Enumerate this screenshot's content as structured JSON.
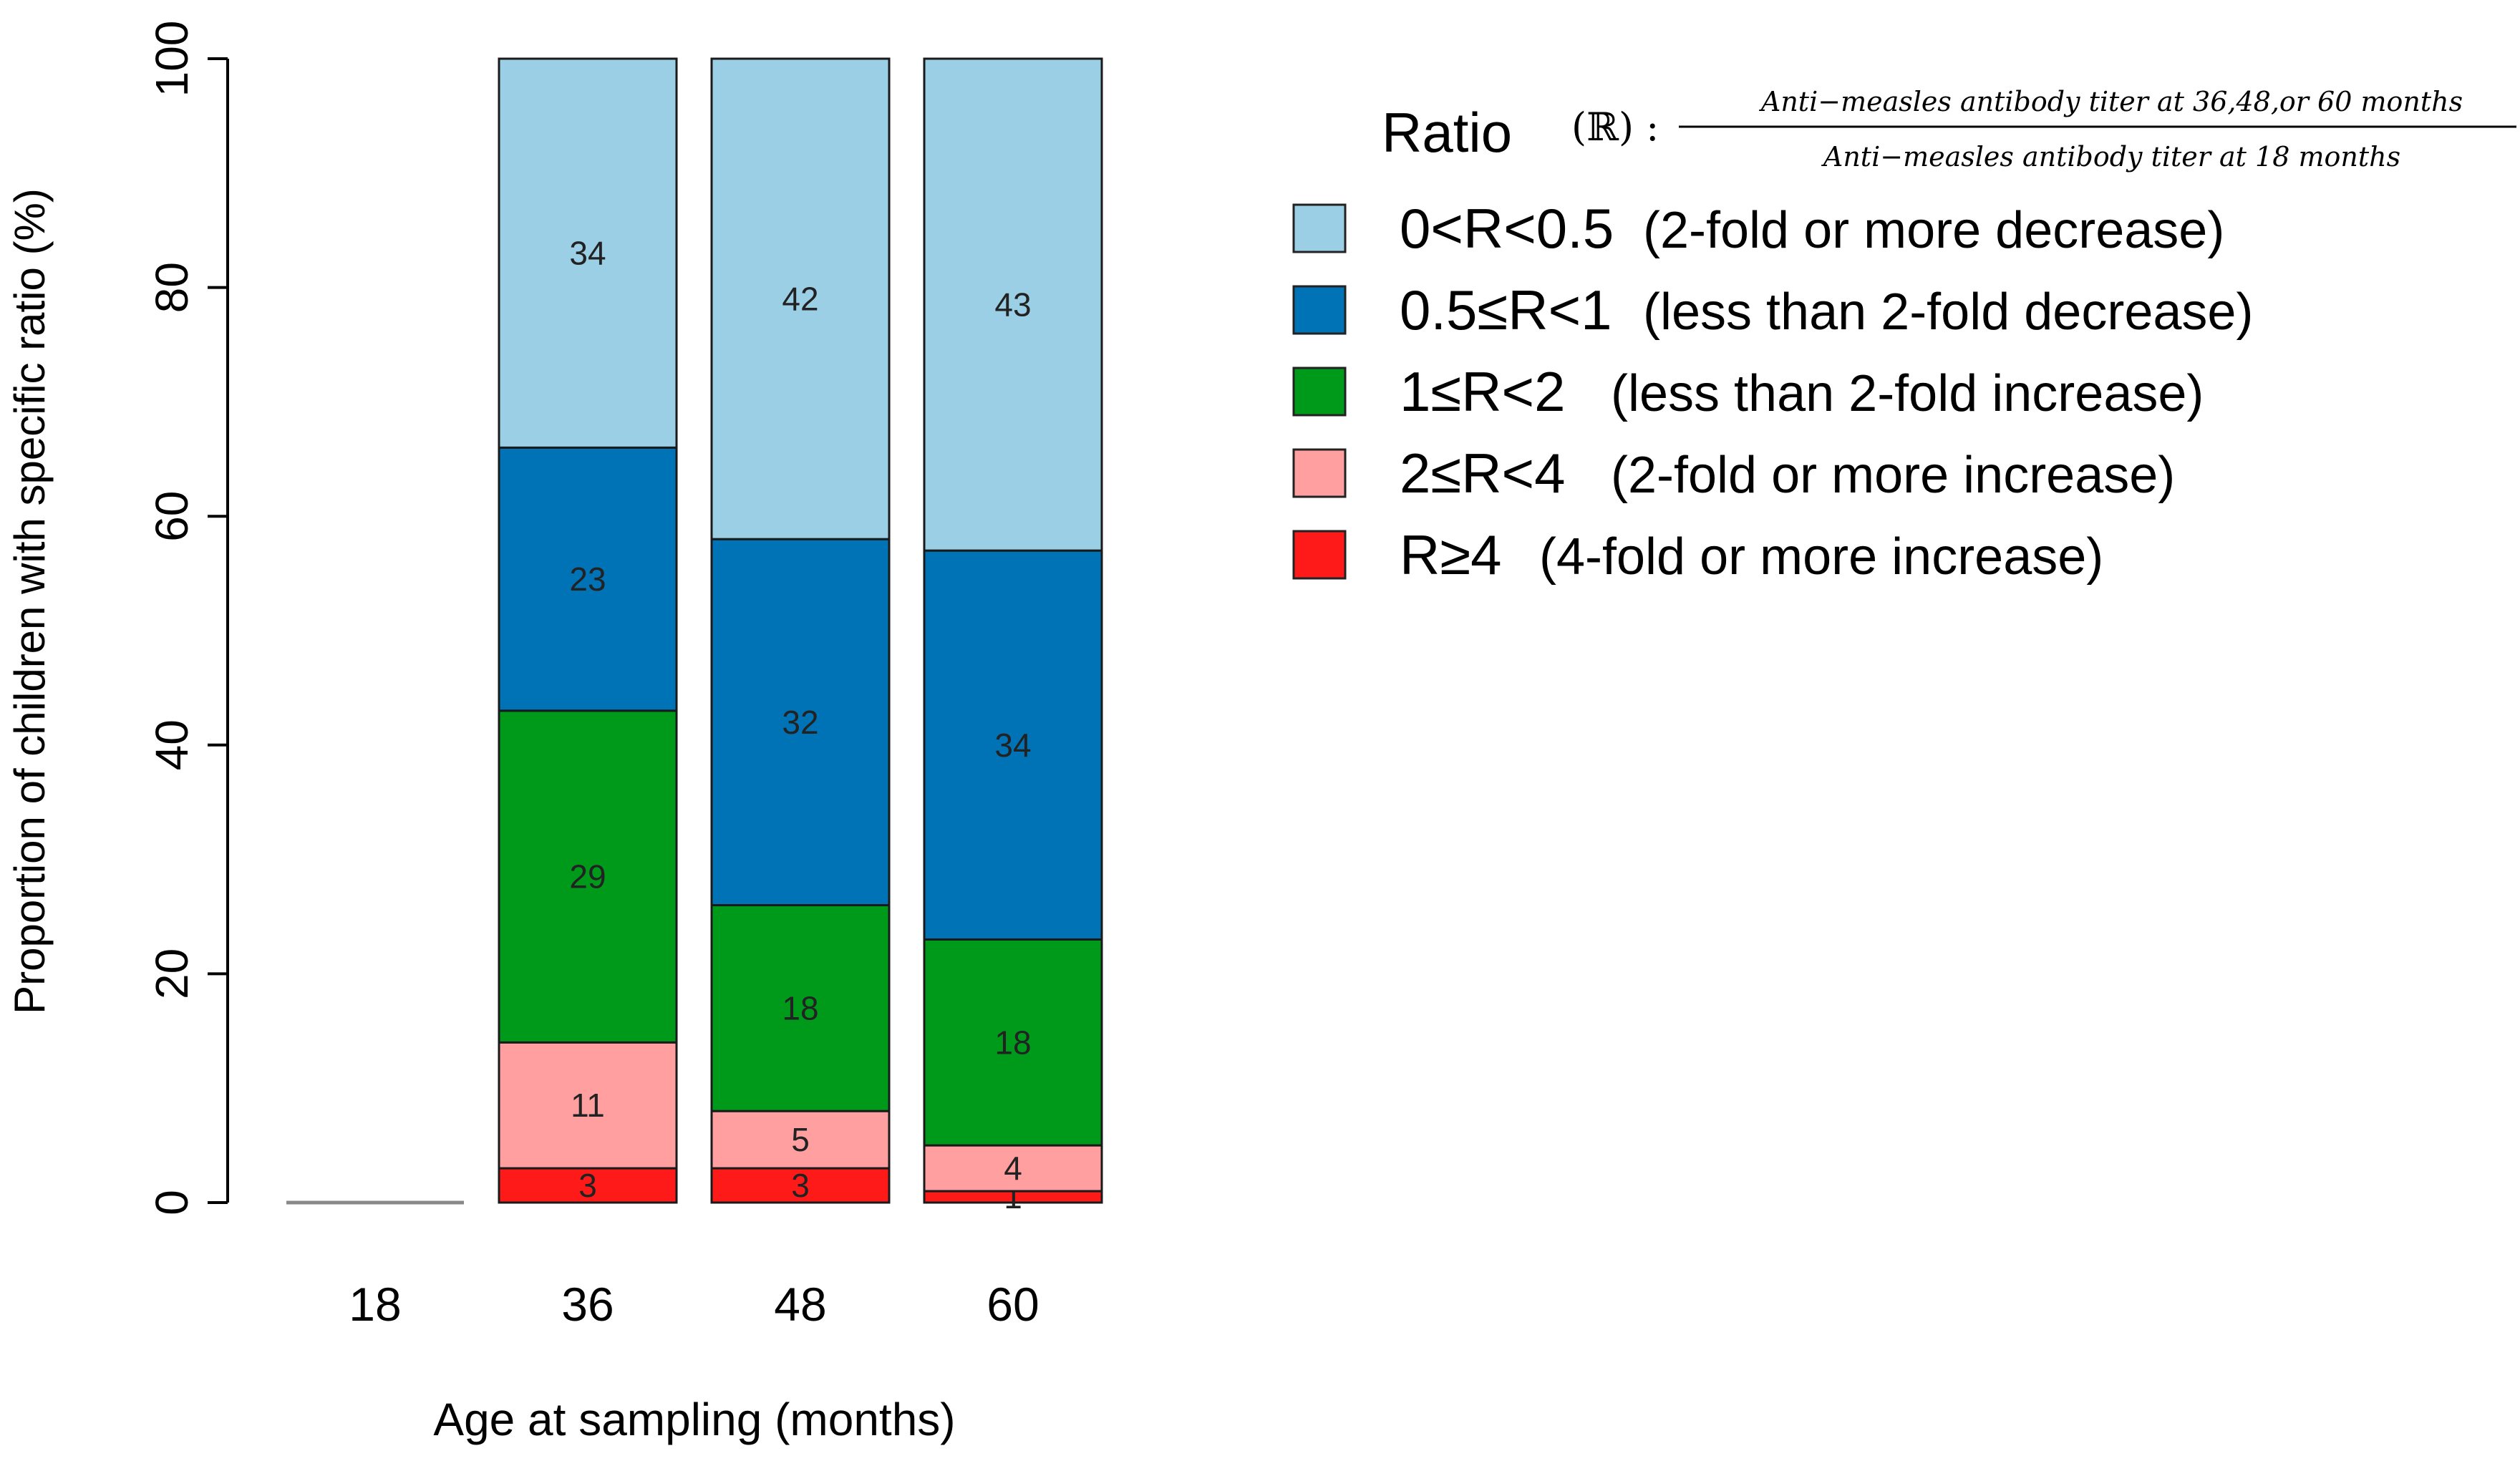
{
  "chart_data": {
    "type": "bar",
    "stacked": true,
    "title": "",
    "xlabel": "Age at sampling (months)",
    "ylabel": "Proportion of children with specific ratio (%)",
    "ylim": [
      0,
      100
    ],
    "yticks": [
      "0",
      "20",
      "40",
      "60",
      "80",
      "100"
    ],
    "categories": [
      "18",
      "36",
      "48",
      "60"
    ],
    "series": [
      {
        "name": "R≥4",
        "color": "#ff1a1a",
        "values": [
          0,
          3,
          3,
          1
        ],
        "labels": [
          "",
          "3",
          "3",
          "1"
        ]
      },
      {
        "name": "2≤R<4",
        "color": "#ff9f9f",
        "values": [
          0,
          11,
          5,
          4
        ],
        "labels": [
          "",
          "11",
          "5",
          "4"
        ]
      },
      {
        "name": "1≤R<2",
        "color": "#009a1a",
        "values": [
          0,
          29,
          18,
          18
        ],
        "labels": [
          "",
          "29",
          "18",
          "18"
        ]
      },
      {
        "name": "0.5≤R<1",
        "color": "#0073b7",
        "values": [
          0,
          23,
          32,
          34
        ],
        "labels": [
          "",
          "23",
          "32",
          "34"
        ]
      },
      {
        "name": "0<R<0.5",
        "color": "#9bcfe6",
        "values": [
          0,
          34,
          42,
          43
        ],
        "labels": [
          "",
          "34",
          "42",
          "43"
        ]
      }
    ],
    "legend": {
      "title": "Ratio",
      "formula": {
        "symbol": "(ℝ) :",
        "numerator": "Anti−measles antibody titer at 36,48,or 60 months",
        "denominator": "Anti−measles antibody titer at 18 months"
      },
      "items": [
        {
          "key": "0<R<0.5",
          "desc": "(2-fold or more decrease)",
          "color": "#9bcfe6"
        },
        {
          "key": "0.5≤R<1",
          "desc": "(less than 2-fold decrease)",
          "color": "#0073b7"
        },
        {
          "key": "1≤R<2",
          "desc": "(less than 2-fold increase)",
          "color": "#009a1a"
        },
        {
          "key": "2≤R<4",
          "desc": "(2-fold or more increase)",
          "color": "#ff9f9f"
        },
        {
          "key": "R≥4",
          "desc": "(4-fold or more increase)",
          "color": "#ff1a1a"
        }
      ],
      "placement": "top-right"
    }
  }
}
